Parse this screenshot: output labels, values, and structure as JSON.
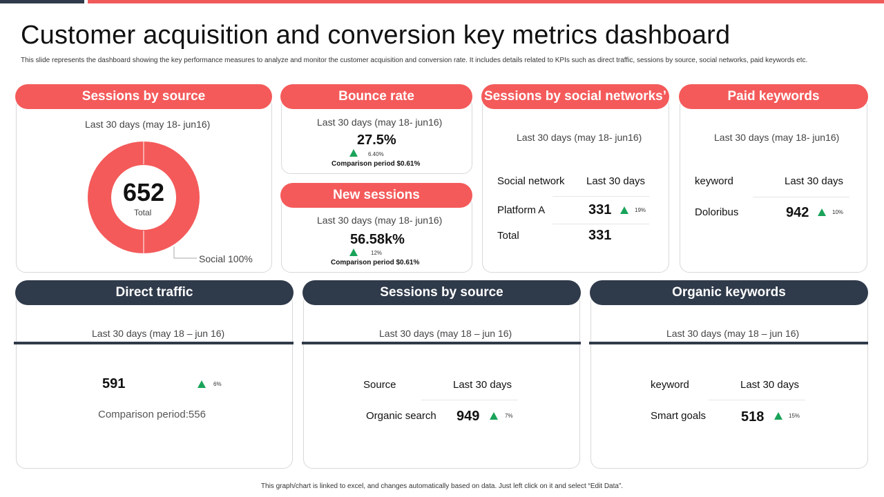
{
  "title": "Customer acquisition and conversion key metrics dashboard",
  "subtitle": "This slide represents the dashboard showing the key performance measures to analyze and monitor the customer acquisition and conversion rate. It includes details related to KPIs such as direct traffic, sessions by source, social networks, paid keywords etc.",
  "colors": {
    "accent": "#f45a5a",
    "dark": "#2f3a4a",
    "up": "#1aa35a"
  },
  "sessions_by_source_donut": {
    "header": "Sessions by source",
    "period": "Last 30 days (may 18- jun16)",
    "total_value": "652",
    "total_label": "Total",
    "legend_label": "Social 100%",
    "share_social": 1.0
  },
  "bounce_rate": {
    "header": "Bounce rate",
    "period": "Last 30 days (may 18- jun16)",
    "value": "27.5%",
    "change": "6.40%",
    "comparison": "Comparison period $0.61%"
  },
  "new_sessions": {
    "header": "New sessions",
    "period": "Last 30 days (may 18- jun16)",
    "value": "56.58k%",
    "change": "12%",
    "comparison": "Comparison period $0.61%"
  },
  "social_networks": {
    "header": "Sessions by social networks’",
    "period": "Last 30 days (may 18- jun16)",
    "col1": "Social network",
    "col2": "Last 30 days",
    "row1_name": "Platform A",
    "row1_value": "331",
    "row1_change": "19%",
    "total_name": "Total",
    "total_value": "331"
  },
  "paid_keywords": {
    "header": "Paid keywords",
    "period": "Last 30 days (may 18- jun16)",
    "col1": "keyword",
    "col2": "Last 30 days",
    "row1_name": "Doloribus",
    "row1_value": "942",
    "row1_change": "10%"
  },
  "direct_traffic": {
    "header": "Direct traffic",
    "period": "Last 30 days (may 18 – jun 16)",
    "value": "591",
    "change": "6%",
    "comparison": "Comparison period:556"
  },
  "sessions_by_source_table": {
    "header": "Sessions by source",
    "period": "Last 30 days (may 18 – jun 16)",
    "col1": "Source",
    "col2": "Last 30 days",
    "row1_name": "Organic search",
    "row1_value": "949",
    "row1_change": "7%"
  },
  "organic_keywords": {
    "header": "Organic keywords",
    "period": "Last 30 days (may 18 – jun 16)",
    "col1": "keyword",
    "col2": "Last 30 days",
    "row1_name": "Smart goals",
    "row1_value": "518",
    "row1_change": "15%"
  },
  "footer": "This graph/chart is linked to excel, and changes automatically based on data. Just left click on it and select “Edit Data”."
}
